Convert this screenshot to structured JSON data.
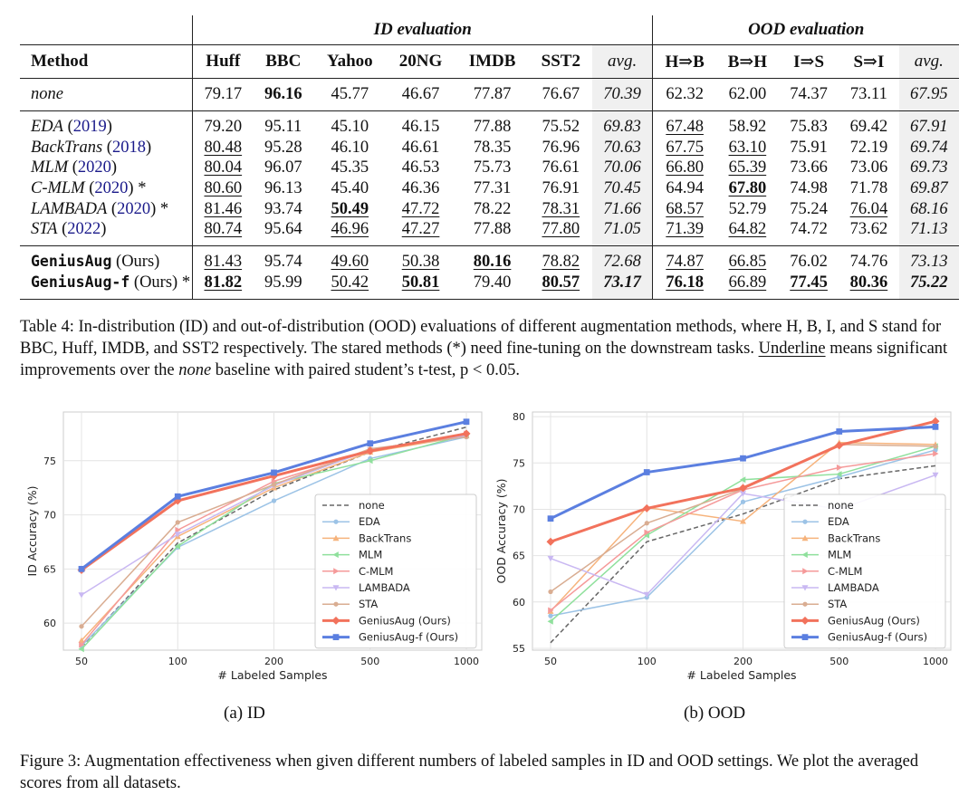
{
  "table": {
    "group_id": "ID evaluation",
    "group_ood": "OOD evaluation",
    "headers": [
      "Method",
      "Huff",
      "BBC",
      "Yahoo",
      "20NG",
      "IMDB",
      "SST2",
      "avg.",
      "H⇒B",
      "B⇒H",
      "I⇒S",
      "S⇒I",
      "avg."
    ],
    "none_row": {
      "name": "none",
      "cells": [
        "79.17",
        "96.16",
        "45.77",
        "46.67",
        "77.87",
        "76.67",
        "70.39",
        "62.32",
        "62.00",
        "74.37",
        "73.11",
        "67.95"
      ]
    },
    "rows_mid": [
      {
        "name": "EDA",
        "year": "2019",
        "star": "",
        "cells": [
          "79.20",
          "95.11",
          "45.10",
          "46.15",
          "77.88",
          "75.52",
          "69.83",
          "67.48",
          "58.92",
          "75.83",
          "69.42",
          "67.91"
        ]
      },
      {
        "name": "BackTrans",
        "year": "2018",
        "star": "",
        "cells": [
          "80.48",
          "95.28",
          "46.10",
          "46.61",
          "78.35",
          "76.96",
          "70.63",
          "67.75",
          "63.10",
          "75.91",
          "72.19",
          "69.74"
        ]
      },
      {
        "name": "MLM",
        "year": "2020",
        "star": "",
        "cells": [
          "80.04",
          "96.07",
          "45.35",
          "46.53",
          "75.73",
          "76.61",
          "70.06",
          "66.80",
          "65.39",
          "73.66",
          "73.06",
          "69.73"
        ]
      },
      {
        "name": "C-MLM",
        "year": "2020",
        "star": " *",
        "cells": [
          "80.60",
          "96.13",
          "45.40",
          "46.36",
          "77.31",
          "76.91",
          "70.45",
          "64.94",
          "67.80",
          "74.98",
          "71.78",
          "69.87"
        ]
      },
      {
        "name": "LAMBADA",
        "year": "2020",
        "star": " *",
        "cells": [
          "81.46",
          "93.74",
          "50.49",
          "47.72",
          "78.22",
          "78.31",
          "71.66",
          "68.57",
          "52.79",
          "75.24",
          "76.04",
          "68.16"
        ]
      },
      {
        "name": "STA",
        "year": "2022",
        "star": "",
        "cells": [
          "80.74",
          "95.64",
          "46.96",
          "47.27",
          "77.88",
          "77.80",
          "71.05",
          "71.39",
          "64.82",
          "74.72",
          "73.62",
          "71.13"
        ]
      }
    ],
    "rows_ours": [
      {
        "name": "GeniusAug",
        "suffix": " (Ours)",
        "star": "",
        "cells": [
          "81.43",
          "95.74",
          "49.60",
          "50.38",
          "80.16",
          "78.82",
          "72.68",
          "74.87",
          "66.85",
          "76.02",
          "74.76",
          "73.13"
        ]
      },
      {
        "name": "GeniusAug-f",
        "suffix": " (Ours)",
        "star": " *",
        "cells": [
          "81.82",
          "95.99",
          "50.42",
          "50.81",
          "79.40",
          "80.57",
          "73.17",
          "76.18",
          "66.89",
          "77.45",
          "80.36",
          "75.22"
        ]
      }
    ]
  },
  "table_caption": {
    "label": "Table 4:",
    "text1": " In-distribution (ID) and out-of-distribution (OOD) evaluations of different augmentation methods, where H, B, I, and S stand for BBC, Huff, IMDB, and SST2 respectively. The stared methods (*) need fine-tuning on the downstream tasks. ",
    "underline_word": "Underline",
    "text2": " means significant improvements over the ",
    "none_word": "none",
    "text3": " baseline with paired student’s t-test, p < 0.05."
  },
  "chart_data": [
    {
      "type": "line",
      "subcaption": "(a) ID",
      "xlabel": "# Labeled Samples",
      "ylabel": "ID Accuracy (%)",
      "categories": [
        "50",
        "100",
        "200",
        "500",
        "1000"
      ],
      "ylim": [
        57.5,
        79.5
      ],
      "yticks": [
        60,
        65,
        70,
        75
      ],
      "series": [
        {
          "name": "none",
          "color": "#666666",
          "marker": "none",
          "dash": true,
          "values": [
            57.8,
            67.4,
            72.3,
            75.8,
            78.1
          ]
        },
        {
          "name": "EDA",
          "color": "#9cc3e6",
          "marker": "circle",
          "values": [
            57.9,
            67.0,
            71.3,
            75.2,
            77.2
          ]
        },
        {
          "name": "BackTrans",
          "color": "#f6b37c",
          "marker": "tri-up",
          "values": [
            58.4,
            68.0,
            72.5,
            75.8,
            77.3
          ]
        },
        {
          "name": "MLM",
          "color": "#8fe09c",
          "marker": "tri-left",
          "values": [
            57.6,
            67.1,
            72.9,
            75.0,
            77.4
          ]
        },
        {
          "name": "C-MLM",
          "color": "#f59a9a",
          "marker": "tri-right",
          "values": [
            58.0,
            68.6,
            73.1,
            75.9,
            77.5
          ]
        },
        {
          "name": "LAMBADA",
          "color": "#c9b8f2",
          "marker": "tri-down",
          "values": [
            62.6,
            68.2,
            72.7,
            76.0,
            77.3
          ]
        },
        {
          "name": "STA",
          "color": "#d9ad92",
          "marker": "circle",
          "values": [
            59.7,
            69.3,
            72.8,
            76.1,
            77.2
          ]
        },
        {
          "name": "GeniusAug (Ours)",
          "color": "#f2725c",
          "marker": "diamond",
          "bold": true,
          "values": [
            64.9,
            71.3,
            73.6,
            75.9,
            77.5
          ]
        },
        {
          "name": "GeniusAug-f (Ours)",
          "color": "#5b7fe0",
          "marker": "square",
          "bold": true,
          "values": [
            65.0,
            71.7,
            73.9,
            76.6,
            78.6
          ]
        }
      ]
    },
    {
      "type": "line",
      "subcaption": "(b) OOD",
      "xlabel": "# Labeled Samples",
      "ylabel": "OOD Accuracy (%)",
      "categories": [
        "50",
        "100",
        "200",
        "500",
        "1000"
      ],
      "ylim": [
        54.8,
        80.5
      ],
      "yticks": [
        55,
        60,
        65,
        70,
        75,
        80
      ],
      "series": [
        {
          "name": "none",
          "color": "#666666",
          "marker": "none",
          "dash": true,
          "values": [
            55.6,
            66.5,
            69.5,
            73.3,
            74.7
          ]
        },
        {
          "name": "EDA",
          "color": "#9cc3e6",
          "marker": "circle",
          "values": [
            58.5,
            60.5,
            70.8,
            73.5,
            76.4
          ]
        },
        {
          "name": "BackTrans",
          "color": "#f6b37c",
          "marker": "tri-up",
          "values": [
            59.0,
            70.2,
            68.7,
            77.2,
            77.0
          ]
        },
        {
          "name": "MLM",
          "color": "#8fe09c",
          "marker": "tri-left",
          "values": [
            57.9,
            67.2,
            73.2,
            73.8,
            76.8
          ]
        },
        {
          "name": "C-MLM",
          "color": "#f59a9a",
          "marker": "tri-right",
          "values": [
            59.1,
            67.5,
            72.1,
            74.5,
            76.0
          ]
        },
        {
          "name": "LAMBADA",
          "color": "#c9b8f2",
          "marker": "tri-down",
          "values": [
            64.7,
            60.8,
            71.7,
            70.0,
            73.7
          ]
        },
        {
          "name": "STA",
          "color": "#d9ad92",
          "marker": "circle",
          "values": [
            61.1,
            68.5,
            72.2,
            77.0,
            76.8
          ]
        },
        {
          "name": "GeniusAug (Ours)",
          "color": "#f2725c",
          "marker": "diamond",
          "bold": true,
          "values": [
            66.5,
            70.1,
            72.3,
            76.9,
            79.5
          ]
        },
        {
          "name": "GeniusAug-f (Ours)",
          "color": "#5b7fe0",
          "marker": "square",
          "bold": true,
          "values": [
            69.0,
            74.0,
            75.5,
            78.4,
            78.9
          ]
        }
      ]
    }
  ],
  "figure_caption": {
    "label": "Figure 3:",
    "text": " Augmentation effectiveness when given different numbers of labeled samples in ID and OOD settings. We plot the averaged scores from all datasets."
  }
}
